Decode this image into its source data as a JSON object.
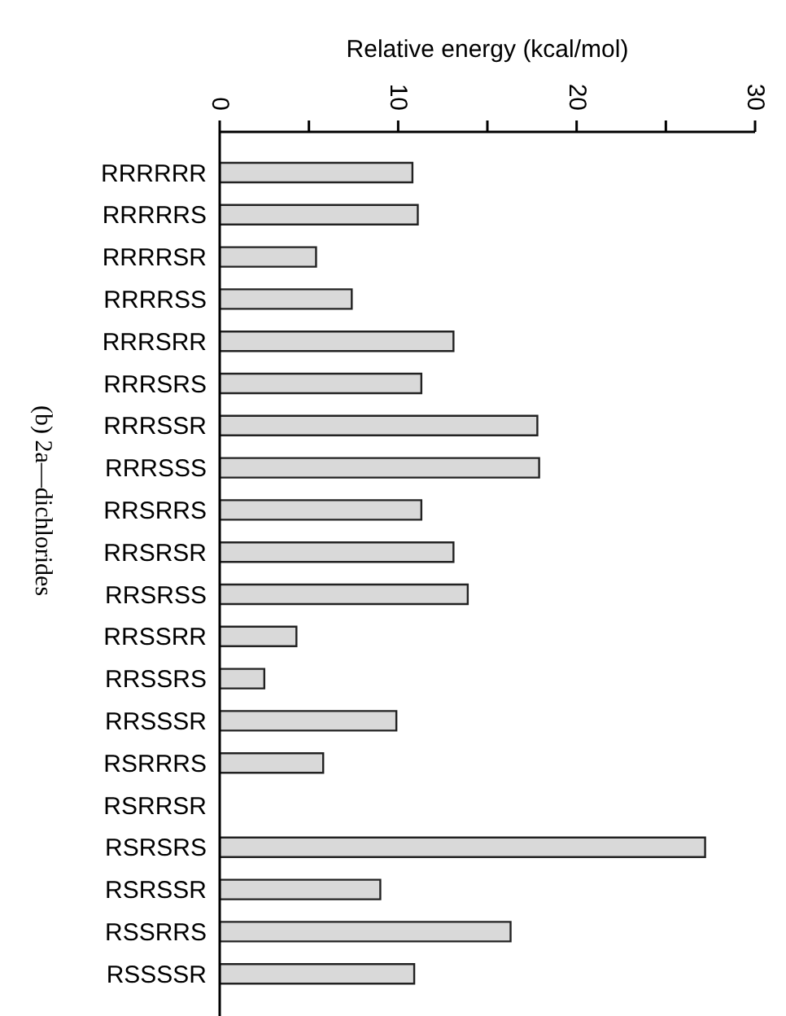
{
  "chart_data": {
    "type": "bar",
    "orientation": "horizontal",
    "title": "(b) 2a—dichlorides",
    "xlabel": "Relative energy (kcal/mol)",
    "categories": [
      "RRRRRR",
      "RRRRRS",
      "RRRRSR",
      "RRRRSS",
      "RRRSRR",
      "RRRSRS",
      "RRRSSR",
      "RRRSSS",
      "RRSRRS",
      "RRSRSR",
      "RRSRSS",
      "RRSSRR",
      "RRSSRS",
      "RRSSSR",
      "RSRRRS",
      "RSRRSR",
      "RSRSRS",
      "RSRSSR",
      "RSSRRS",
      "RSSSSR"
    ],
    "values": [
      10.8,
      11.1,
      5.4,
      7.4,
      13.1,
      11.3,
      17.8,
      17.9,
      11.3,
      13.1,
      13.9,
      4.3,
      2.5,
      9.9,
      5.8,
      0,
      27.2,
      9.0,
      16.3,
      10.9
    ],
    "color": "#d9d9d9",
    "xlim": [
      0,
      30
    ],
    "xticks": [
      0,
      {
        "value": 5,
        "label": null
      },
      10,
      {
        "value": 15,
        "label": null
      },
      20,
      {
        "value": 25,
        "label": null
      },
      30
    ],
    "grid": false,
    "legend": false
  }
}
